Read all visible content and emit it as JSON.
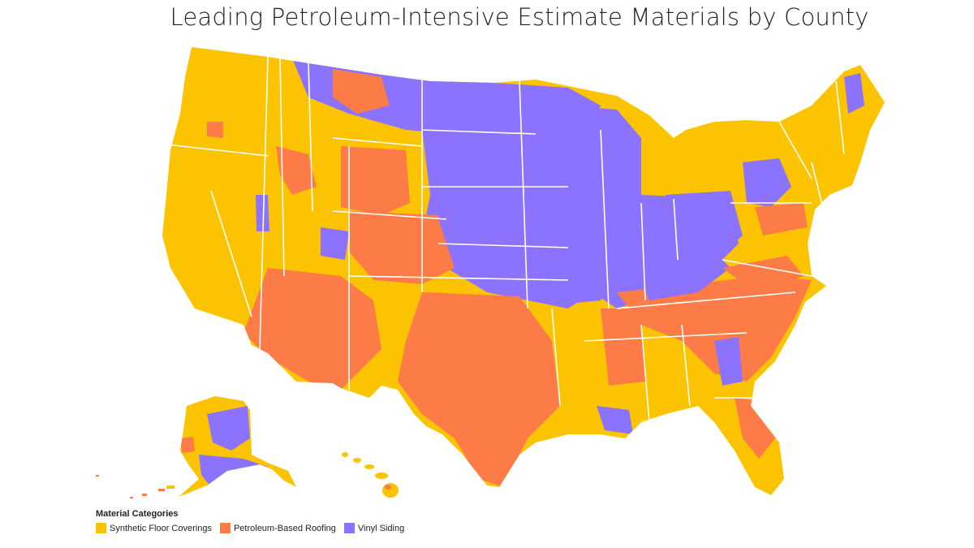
{
  "title": "Leading Petroleum-Intensive Estimate Materials by County",
  "legend": {
    "title": "Material Categories",
    "items": [
      {
        "label": "Synthetic Floor Coverings",
        "color": "#fcc400"
      },
      {
        "label": "Petroleum-Based Roofing",
        "color": "#fd7b46"
      },
      {
        "label": "Vinyl Siding",
        "color": "#8b72ff"
      }
    ]
  },
  "colors": {
    "synthetic_floor": "#fcc400",
    "roofing": "#fd7b46",
    "vinyl": "#8b72ff",
    "borders": "#ffffff"
  }
}
